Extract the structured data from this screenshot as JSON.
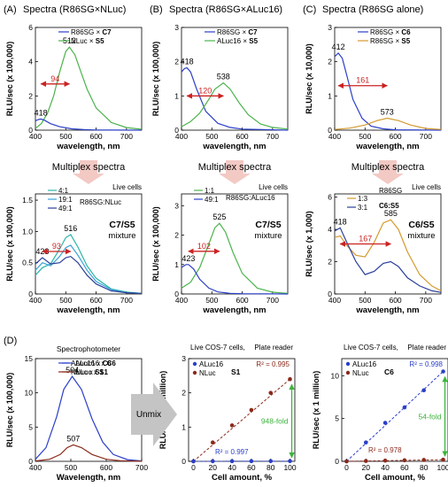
{
  "colors": {
    "blue": "#2b3fc8",
    "green": "#4cb34c",
    "gold": "#d49a2f",
    "darkred": "#8b2a1c",
    "arrow": "#cc2222",
    "teal": "#2bb5a8",
    "cyan": "#3aa2d8",
    "navy": "#2a3f9a",
    "multiplex_bg": "#f3c9c4",
    "unmix_bg": "#c4c4c4",
    "text": "#000000"
  },
  "labels": {
    "xlabel": "wavelength, nm",
    "xlabel_D": "Wavelength, nm",
    "xlabel_cell": "Cell amount, %",
    "multiplex": "Multiplex spectra",
    "unmix": "Unmix",
    "live_cells": "Live cells",
    "spectrophotometer": "Spectrophotometer",
    "live_cos7": "Live COS-7 cells,",
    "plate_reader": "Plate reader"
  },
  "chart_data": [
    {
      "id": "A1",
      "panel_label": "(A)",
      "title": "Spectra (R86SG×NLuc)",
      "type": "line",
      "ylabel": "RLU/sec (x 100,000)",
      "xlabel": "wavelength, nm",
      "xlim": [
        400,
        750
      ],
      "ylim": [
        0,
        6.0
      ],
      "xticks": [
        "400",
        "500",
        "600",
        "700"
      ],
      "yticks": [
        "0",
        "2",
        "4",
        "6"
      ],
      "legend": [
        {
          "label": "R86SG × ",
          "bold": "C7",
          "color": "blue"
        },
        {
          "label": "NLuc × ",
          "bold": "S5",
          "color": "green"
        }
      ],
      "series": [
        {
          "color": "green",
          "x": [
            400,
            420,
            440,
            460,
            480,
            500,
            512,
            530,
            550,
            570,
            600,
            650,
            700,
            750
          ],
          "y": [
            0.1,
            0.4,
            1.0,
            2.0,
            3.4,
            4.6,
            4.85,
            4.4,
            3.4,
            2.4,
            1.3,
            0.45,
            0.15,
            0.05
          ]
        },
        {
          "color": "blue",
          "x": [
            400,
            410,
            418,
            430,
            450,
            480,
            520,
            560,
            600,
            750
          ],
          "y": [
            0.55,
            0.62,
            0.65,
            0.58,
            0.38,
            0.2,
            0.08,
            0.03,
            0.01,
            0
          ]
        }
      ],
      "peaks": [
        {
          "text": "512",
          "x": 512,
          "y": 4.85
        },
        {
          "text": "418",
          "x": 418,
          "y": 0.65
        }
      ],
      "shift": {
        "text": "94",
        "x1": 418,
        "x2": 512,
        "y": 2.7
      }
    },
    {
      "id": "B1",
      "panel_label": "(B)",
      "title": "Spectra (R86SG×ALuc16)",
      "type": "line",
      "ylabel": "RLU/sec (x 100,000)",
      "xlabel": "wavelength, nm",
      "xlim": [
        400,
        750
      ],
      "ylim": [
        0,
        3
      ],
      "xticks": [
        "400",
        "500",
        "600",
        "700"
      ],
      "yticks": [
        "0",
        "1",
        "2",
        "3"
      ],
      "legend": [
        {
          "label": "R86SG × ",
          "bold": "C7",
          "color": "blue"
        },
        {
          "label": "ALuc16 × ",
          "bold": "S5",
          "color": "green"
        }
      ],
      "series": [
        {
          "color": "blue",
          "x": [
            400,
            410,
            418,
            430,
            450,
            480,
            520,
            560,
            600,
            750
          ],
          "y": [
            1.7,
            1.8,
            1.82,
            1.7,
            1.2,
            0.55,
            0.2,
            0.08,
            0.03,
            0
          ]
        },
        {
          "color": "green",
          "x": [
            400,
            430,
            460,
            490,
            510,
            538,
            560,
            590,
            620,
            660,
            700,
            750
          ],
          "y": [
            0.1,
            0.25,
            0.5,
            0.9,
            1.2,
            1.38,
            1.2,
            0.8,
            0.45,
            0.18,
            0.08,
            0.03
          ]
        }
      ],
      "peaks": [
        {
          "text": "418",
          "x": 418,
          "y": 1.82
        },
        {
          "text": "538",
          "x": 538,
          "y": 1.38
        }
      ],
      "shift": {
        "text": "120",
        "x1": 418,
        "x2": 538,
        "y": 1.0
      }
    },
    {
      "id": "C1",
      "panel_label": "(C)",
      "title": "Spectra (R86SG alone)",
      "type": "line",
      "ylabel": "RLU/sec (x 10,000)",
      "xlabel": "wavelength, nm",
      "xlim": [
        400,
        750
      ],
      "ylim": [
        0,
        3
      ],
      "xticks": [
        "400",
        "500",
        "600",
        "700"
      ],
      "yticks": [
        "0",
        "1",
        "2",
        "3"
      ],
      "legend": [
        {
          "label": "R86SG × ",
          "bold": "C6",
          "color": "blue"
        },
        {
          "label": "R86SG × ",
          "bold": "S5",
          "color": "gold"
        }
      ],
      "series": [
        {
          "color": "blue",
          "x": [
            400,
            412,
            425,
            440,
            460,
            490,
            520,
            560,
            600,
            750
          ],
          "y": [
            2.15,
            2.25,
            2.1,
            1.6,
            0.9,
            0.35,
            0.12,
            0.04,
            0.01,
            0
          ]
        },
        {
          "color": "gold",
          "x": [
            400,
            450,
            500,
            540,
            573,
            610,
            650,
            700,
            750
          ],
          "y": [
            0.02,
            0.06,
            0.15,
            0.28,
            0.35,
            0.28,
            0.15,
            0.05,
            0.02
          ]
        }
      ],
      "peaks": [
        {
          "text": "412",
          "x": 412,
          "y": 2.25
        },
        {
          "text": "573",
          "x": 573,
          "y": 0.35
        }
      ],
      "shift": {
        "text": "161",
        "x1": 412,
        "x2": 573,
        "y": 1.3
      }
    },
    {
      "id": "A2",
      "type": "line",
      "ylabel": "RLU/sec (x 100,000)",
      "xlabel": "wavelength, nm",
      "xlim": [
        400,
        750
      ],
      "ylim": [
        0,
        1.6
      ],
      "xticks": [
        "400",
        "500",
        "600",
        "700"
      ],
      "yticks": [
        "0",
        "0.5",
        "1.0",
        "1.5"
      ],
      "legend_ratio": [
        "4:1",
        "19:1",
        "49:1"
      ],
      "legend_group": "R86SG:NLuc",
      "mixture_bold": "C7/S5",
      "mixture": "mixture",
      "series": [
        {
          "color": "teal",
          "x": [
            400,
            423,
            450,
            480,
            500,
            516,
            540,
            570,
            600,
            650,
            700,
            750
          ],
          "y": [
            0.3,
            0.42,
            0.48,
            0.72,
            0.9,
            0.95,
            0.75,
            0.45,
            0.25,
            0.08,
            0.03,
            0.01
          ]
        },
        {
          "color": "cyan",
          "x": [
            400,
            423,
            450,
            480,
            500,
            516,
            540,
            570,
            600,
            650,
            700,
            750
          ],
          "y": [
            0.38,
            0.5,
            0.45,
            0.6,
            0.74,
            0.78,
            0.62,
            0.38,
            0.2,
            0.07,
            0.02,
            0.01
          ]
        },
        {
          "color": "navy",
          "x": [
            400,
            423,
            450,
            480,
            500,
            516,
            540,
            570,
            600,
            650,
            700,
            750
          ],
          "y": [
            0.48,
            0.58,
            0.48,
            0.5,
            0.58,
            0.6,
            0.5,
            0.3,
            0.16,
            0.05,
            0.02,
            0.01
          ]
        }
      ],
      "peaks": [
        {
          "text": "516",
          "x": 516,
          "y": 0.95
        },
        {
          "text": "423",
          "x": 423,
          "y": 0.58
        }
      ],
      "shift": {
        "text": "93",
        "x1": 423,
        "x2": 516,
        "y": 0.68
      }
    },
    {
      "id": "B2",
      "type": "line",
      "ylabel": "RLU/sec (x 100,000)",
      "xlabel": "wavelength, nm",
      "xlim": [
        400,
        750
      ],
      "ylim": [
        0,
        3.4
      ],
      "xticks": [
        "400",
        "500",
        "600",
        "700"
      ],
      "yticks": [
        "0",
        "1",
        "2",
        "3"
      ],
      "legend_ratio": [
        "1:1",
        "49:1"
      ],
      "legend_group": "R86SG:ALuc16",
      "mixture_bold": "C7/S5",
      "mixture": "mixture",
      "series": [
        {
          "color": "green",
          "x": [
            400,
            430,
            460,
            490,
            510,
            525,
            545,
            570,
            600,
            650,
            700,
            750
          ],
          "y": [
            0.2,
            0.4,
            0.9,
            1.7,
            2.25,
            2.4,
            2.1,
            1.4,
            0.7,
            0.2,
            0.06,
            0.02
          ]
        },
        {
          "color": "blue",
          "x": [
            400,
            415,
            423,
            440,
            460,
            490,
            520,
            560,
            600,
            750
          ],
          "y": [
            0.9,
            1.0,
            1.0,
            0.85,
            0.5,
            0.2,
            0.07,
            0.02,
            0.01,
            0
          ]
        }
      ],
      "peaks": [
        {
          "text": "525",
          "x": 525,
          "y": 2.4
        },
        {
          "text": "423",
          "x": 423,
          "y": 1.0
        }
      ],
      "shift": {
        "text": "102",
        "x1": 423,
        "x2": 525,
        "y": 1.45
      }
    },
    {
      "id": "C2",
      "type": "line",
      "ylabel": "RLU/sec (x 1,000)",
      "xlabel": "wavelength, nm",
      "xlim": [
        400,
        750
      ],
      "ylim": [
        0,
        6.2
      ],
      "xticks": [
        "400",
        "500",
        "600",
        "700"
      ],
      "yticks": [
        "0",
        "2",
        "4",
        "6"
      ],
      "legend_ratio": [
        "1:3",
        "3:1"
      ],
      "legend_group": "C6:S5",
      "legend_head": "R86SG",
      "mixture_bold": "C6/S5",
      "mixture": "mixture",
      "series": [
        {
          "color": "gold",
          "x": [
            400,
            418,
            440,
            470,
            500,
            530,
            560,
            585,
            610,
            640,
            680,
            720,
            750
          ],
          "y": [
            3.5,
            3.6,
            3.0,
            2.4,
            2.3,
            3.2,
            4.4,
            4.6,
            4.0,
            2.6,
            1.2,
            0.5,
            0.2
          ]
        },
        {
          "color": "navy",
          "x": [
            400,
            418,
            440,
            470,
            500,
            530,
            560,
            585,
            610,
            640,
            680,
            720,
            750
          ],
          "y": [
            3.9,
            4.1,
            3.2,
            2.0,
            1.2,
            1.4,
            1.9,
            2.0,
            1.7,
            1.0,
            0.5,
            0.2,
            0.1
          ]
        }
      ],
      "peaks": [
        {
          "text": "418",
          "x": 418,
          "y": 4.1
        },
        {
          "text": "585",
          "x": 585,
          "y": 4.6
        }
      ],
      "shift": {
        "text": "167",
        "x1": 418,
        "x2": 585,
        "y": 3.1
      }
    },
    {
      "id": "D1",
      "panel_label": "(D)",
      "type": "line",
      "ylabel": "RLU/sec (x 100,000)",
      "xlabel": "Wavelength, nm",
      "xlim": [
        400,
        700
      ],
      "ylim": [
        0,
        15
      ],
      "xticks": [
        "400",
        "500",
        "600",
        "700"
      ],
      "yticks": [
        "0",
        "5",
        "10",
        "15"
      ],
      "header": "Spectrophotometer",
      "legend": [
        {
          "label": "ALuc16 x ",
          "bold": "C6",
          "color": "blue"
        },
        {
          "label": "NLuc x ",
          "bold": "S1",
          "color": "darkred"
        }
      ],
      "series": [
        {
          "color": "blue",
          "x": [
            400,
            430,
            460,
            480,
            504,
            530,
            560,
            590,
            620,
            660,
            700
          ],
          "y": [
            0.3,
            2.0,
            6.5,
            10.5,
            12.4,
            10.5,
            6.2,
            2.8,
            1.0,
            0.25,
            0.05
          ]
        },
        {
          "color": "darkred",
          "x": [
            400,
            440,
            470,
            490,
            507,
            530,
            560,
            600,
            640,
            700
          ],
          "y": [
            0.05,
            0.3,
            1.0,
            2.0,
            2.4,
            2.0,
            1.0,
            0.3,
            0.08,
            0.01
          ]
        }
      ],
      "peaks": [
        {
          "text": "504",
          "x": 504,
          "y": 12.4
        },
        {
          "text": "507",
          "x": 507,
          "y": 2.4
        }
      ]
    },
    {
      "id": "D2",
      "type": "scatter",
      "ylabel": "RLU/sec (x 1 million)",
      "xlabel": "Cell amount, %",
      "xlim": [
        -5,
        105
      ],
      "ylim": [
        0,
        3.0
      ],
      "xticks": [
        "0",
        "20",
        "40",
        "60",
        "80",
        "100"
      ],
      "yticks": [
        "0",
        "1",
        "2",
        "3"
      ],
      "header_left": "Live COS-7 cells,",
      "header_right": "Plate reader",
      "legend": [
        {
          "label": "ALuc16",
          "color": "blue"
        },
        {
          "label": "NLuc",
          "color": "darkred"
        }
      ],
      "legend_bold": "S1",
      "series": [
        {
          "name": "NLuc",
          "color": "darkred",
          "x": [
            0,
            20,
            40,
            60,
            80,
            100
          ],
          "y": [
            0,
            0.55,
            1.05,
            1.5,
            2.0,
            2.4
          ],
          "r2": "R² = 0.995"
        },
        {
          "name": "ALuc16",
          "color": "blue",
          "x": [
            0,
            20,
            40,
            60,
            80,
            100
          ],
          "y": [
            0,
            0.002,
            0.003,
            0.004,
            0.005,
            0.005
          ],
          "r2": "R² = 0.997"
        }
      ],
      "fold": "948-fold"
    },
    {
      "id": "D3",
      "type": "scatter",
      "ylabel": "RLU/sec (x 1 million)",
      "xlabel": "Cell amount, %",
      "xlim": [
        -5,
        105
      ],
      "ylim": [
        0,
        12
      ],
      "xticks": [
        "0",
        "20",
        "40",
        "60",
        "80",
        "100"
      ],
      "yticks": [
        "0",
        "5",
        "10"
      ],
      "header_left": "Live COS-7 cells,",
      "header_right": "Plate reader",
      "legend": [
        {
          "label": "ALuc16",
          "color": "blue"
        },
        {
          "label": "NLuc",
          "color": "darkred"
        }
      ],
      "legend_bold": "C6",
      "series": [
        {
          "name": "ALuc16",
          "color": "blue",
          "x": [
            0,
            20,
            40,
            60,
            80,
            100
          ],
          "y": [
            0,
            2.2,
            4.5,
            6.3,
            8.3,
            10.5
          ],
          "r2": "R² = 0.998"
        },
        {
          "name": "NLuc",
          "color": "darkred",
          "x": [
            0,
            20,
            40,
            60,
            80,
            100
          ],
          "y": [
            0,
            0.04,
            0.08,
            0.12,
            0.16,
            0.19
          ],
          "r2": "R² = 0.978"
        }
      ],
      "fold": "54-fold"
    }
  ]
}
